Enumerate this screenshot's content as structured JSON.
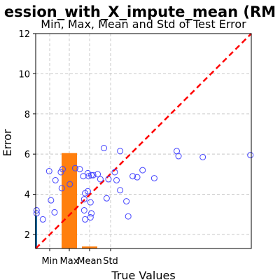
{
  "suptitle": "ession_with_X_impute_mean (RM",
  "chart_data": {
    "type": "scatter",
    "title": "Min, Max, Mean and Std of Test Error",
    "xlabel": "True Values",
    "ylabel": "Error",
    "ylim": [
      1.3,
      12
    ],
    "yticks": [
      2,
      4,
      6,
      8,
      10,
      12
    ],
    "xlim": [
      0,
      12
    ],
    "xtick_labels": [
      "Min",
      "Max",
      "Mean",
      "Std"
    ],
    "grid": true,
    "bars": {
      "color": "#ff7f0e",
      "categories": [
        "Min",
        "Max",
        "Mean",
        "Std"
      ],
      "values": [
        1.3,
        6.05,
        1.4,
        1.3
      ]
    },
    "blue_bar": {
      "color": "#1f77b4",
      "value": 2.95
    },
    "reference_line": {
      "color": "#ff0000",
      "style": "dashed",
      "from": [
        0,
        1.3
      ],
      "to": [
        12,
        12
      ]
    },
    "scatter": {
      "color": "#4444ff",
      "points": [
        [
          0.05,
          3.2
        ],
        [
          0.05,
          3.05
        ],
        [
          0.4,
          2.75
        ],
        [
          0.75,
          5.15
        ],
        [
          0.85,
          3.7
        ],
        [
          1.05,
          3.1
        ],
        [
          1.1,
          4.7
        ],
        [
          1.4,
          5.1
        ],
        [
          1.5,
          5.25
        ],
        [
          1.45,
          4.3
        ],
        [
          1.9,
          4.5
        ],
        [
          2.2,
          5.3
        ],
        [
          2.45,
          5.25
        ],
        [
          2.65,
          4.9
        ],
        [
          2.7,
          3.75
        ],
        [
          2.75,
          4.05
        ],
        [
          2.7,
          3.2
        ],
        [
          2.75,
          2.75
        ],
        [
          2.9,
          4.15
        ],
        [
          2.9,
          5.05
        ],
        [
          2.95,
          4.9
        ],
        [
          3.05,
          3.6
        ],
        [
          3.1,
          3.05
        ],
        [
          3.05,
          2.85
        ],
        [
          3.1,
          4.95
        ],
        [
          3.2,
          4.95
        ],
        [
          3.45,
          5.0
        ],
        [
          3.6,
          4.75
        ],
        [
          3.8,
          6.3
        ],
        [
          3.95,
          3.8
        ],
        [
          4.05,
          4.75
        ],
        [
          4.4,
          5.1
        ],
        [
          4.5,
          4.7
        ],
        [
          4.7,
          6.15
        ],
        [
          4.7,
          4.2
        ],
        [
          5.05,
          3.65
        ],
        [
          5.15,
          2.9
        ],
        [
          5.4,
          4.9
        ],
        [
          5.65,
          4.85
        ],
        [
          5.95,
          5.2
        ],
        [
          6.6,
          4.8
        ],
        [
          7.85,
          6.15
        ],
        [
          7.95,
          5.9
        ],
        [
          9.3,
          5.85
        ],
        [
          11.95,
          5.95
        ]
      ]
    }
  }
}
